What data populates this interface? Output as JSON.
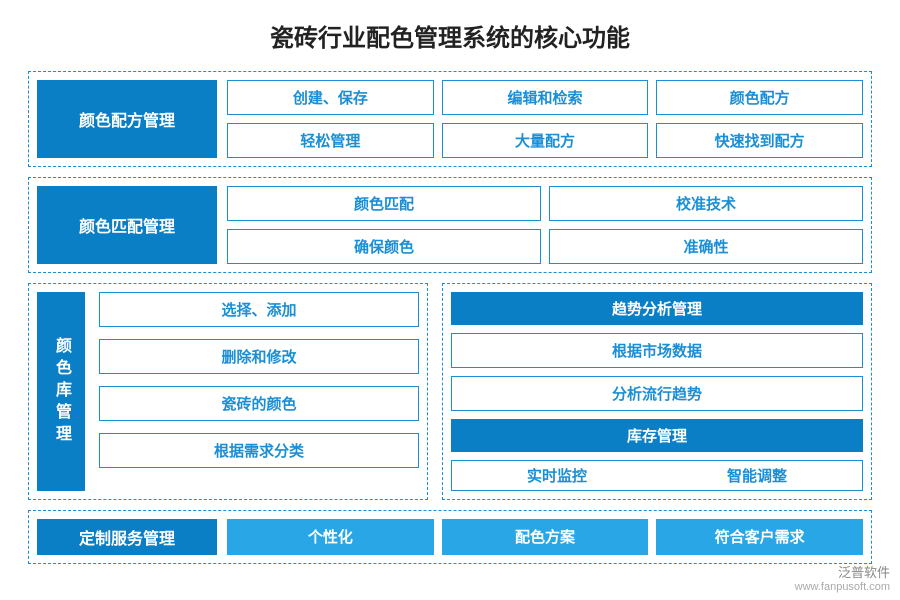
{
  "title": "瓷砖行业配色管理系统的核心功能",
  "colors": {
    "border_dash": "#1b8fd6",
    "fill_dark": "#0a7fc6",
    "fill_light": "#29a6e5",
    "text_dark": "#222222",
    "bg": "#ffffff"
  },
  "section1": {
    "label": "颜色配方管理",
    "items": [
      "创建、保存",
      "编辑和检索",
      "颜色配方",
      "轻松管理",
      "大量配方",
      "快速找到配方"
    ]
  },
  "section2": {
    "label": "颜色匹配管理",
    "items": [
      "颜色匹配",
      "校准技术",
      "确保颜色",
      "准确性"
    ]
  },
  "section3_left": {
    "label": "颜色库管理",
    "items": [
      "选择、添加",
      "删除和修改",
      "瓷砖的颜色",
      "根据需求分类"
    ]
  },
  "section3_right": {
    "group1": {
      "header": "趋势分析管理",
      "items": [
        "根据市场数据",
        "分析流行趋势"
      ]
    },
    "group2": {
      "header": "库存管理",
      "items": [
        "实时监控",
        "智能调整"
      ]
    }
  },
  "section4": {
    "label": "定制服务管理",
    "items": [
      "个性化",
      "配色方案",
      "符合客户需求"
    ]
  },
  "watermark": {
    "name": "泛普软件",
    "url": "www.fanpusoft.com"
  }
}
